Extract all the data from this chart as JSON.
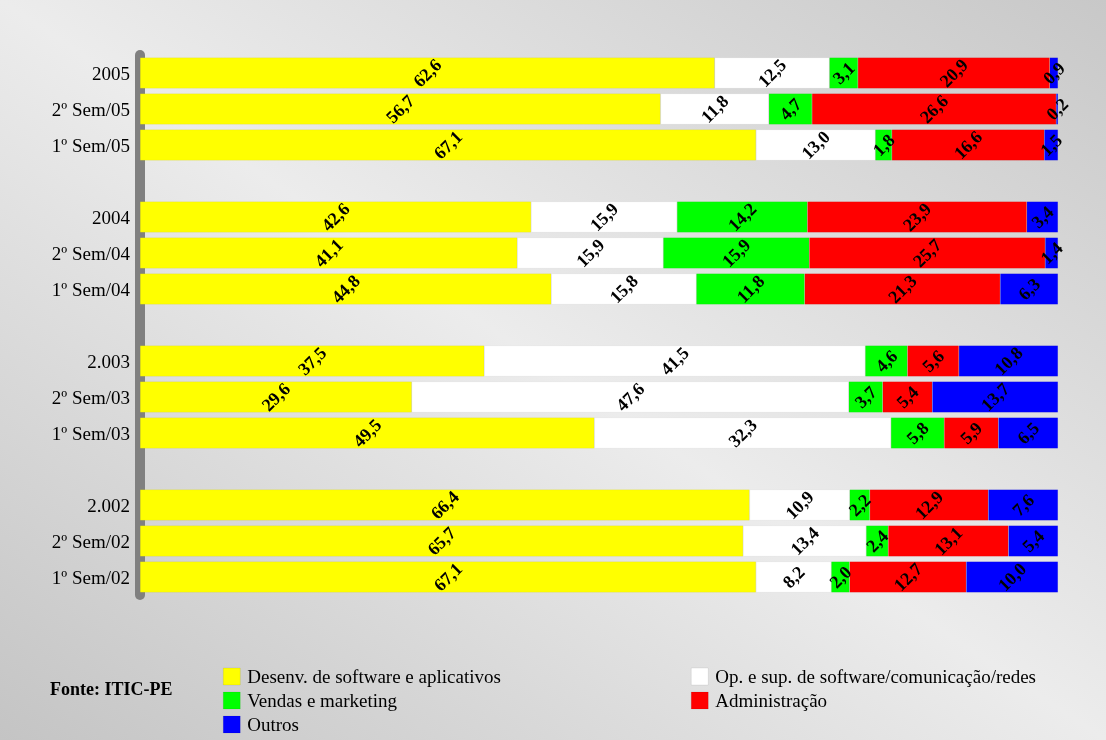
{
  "chart_data": {
    "type": "bar",
    "orientation": "horizontal",
    "stacked": true,
    "categories": [
      "2005",
      "2º Sem/05",
      "1º Sem/05",
      null,
      "2004",
      "2º Sem/04",
      "1º Sem/04",
      null,
      "2.003",
      "2º Sem/03",
      "1º Sem/03",
      null,
      "2.002",
      "2º Sem/02",
      "1º Sem/02"
    ],
    "series": [
      {
        "name": "Desenv. de software e aplicativos",
        "color": "#ffff00",
        "values": [
          62.6,
          56.7,
          67.1,
          null,
          42.6,
          41.1,
          44.8,
          null,
          37.5,
          29.6,
          49.5,
          null,
          66.4,
          65.7,
          67.1
        ],
        "value_labels": [
          "62,6",
          "56,7",
          "67,1",
          null,
          "42,6",
          "41,1",
          "44,8",
          null,
          "37,5",
          "29,6",
          "49,5",
          null,
          "66,4",
          "65,7",
          "67,1"
        ]
      },
      {
        "name": "Op. e sup. de software/comunicação/redes",
        "color": "#ffffff",
        "values": [
          12.5,
          11.8,
          13.0,
          null,
          15.9,
          15.9,
          15.8,
          null,
          41.5,
          47.6,
          32.3,
          null,
          10.9,
          13.4,
          8.2
        ],
        "value_labels": [
          "12,5",
          "11,8",
          "13,0",
          null,
          "15,9",
          "15,9",
          "15,8",
          null,
          "41,5",
          "47,6",
          "32,3",
          null,
          "10,9",
          "13,4",
          "8,2"
        ]
      },
      {
        "name": "Vendas e marketing",
        "color": "#00ff00",
        "values": [
          3.1,
          4.7,
          1.8,
          null,
          14.2,
          15.9,
          11.8,
          null,
          4.6,
          3.7,
          5.8,
          null,
          2.2,
          2.4,
          2.0
        ],
        "value_labels": [
          "3,1",
          "4,7",
          "1,8",
          null,
          "14,2",
          "15,9",
          "11,8",
          null,
          "4,6",
          "3,7",
          "5,8",
          null,
          "2,2",
          "2,4",
          "2,0"
        ]
      },
      {
        "name": "Administração",
        "color": "#ff0000",
        "values": [
          20.9,
          26.6,
          16.6,
          null,
          23.9,
          25.7,
          21.3,
          null,
          5.6,
          5.4,
          5.9,
          null,
          12.9,
          13.1,
          12.7
        ],
        "value_labels": [
          "20,9",
          "26,6",
          "16,6",
          null,
          "23,9",
          "25,7",
          "21,3",
          null,
          "5,6",
          "5,4",
          "5,9",
          null,
          "12,9",
          "13,1",
          "12,7"
        ]
      },
      {
        "name": "Outros",
        "color": "#0000ff",
        "values": [
          0.9,
          0.2,
          1.5,
          null,
          3.4,
          1.4,
          6.3,
          null,
          10.8,
          13.7,
          6.5,
          null,
          7.6,
          5.4,
          10.0
        ],
        "value_labels": [
          "0,9",
          "0,2",
          "1,5",
          null,
          "3,4",
          "1,4",
          "6,3",
          null,
          "10,8",
          "13,7",
          "6,5",
          null,
          "7,6",
          "5,4",
          "10,0"
        ]
      }
    ],
    "legend": "bottom",
    "grid": false,
    "annotations": [
      "Fonte: ITIC-PE"
    ]
  }
}
